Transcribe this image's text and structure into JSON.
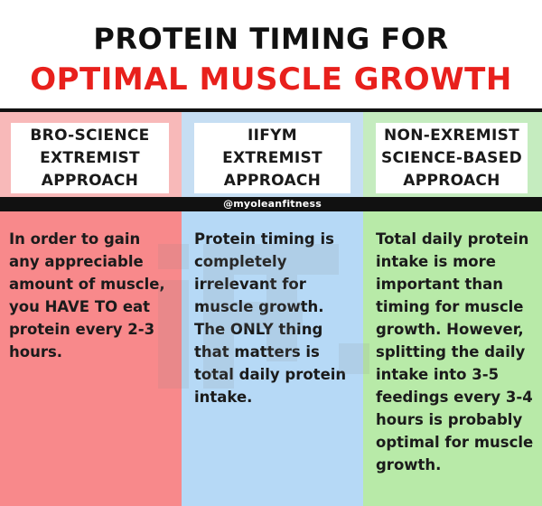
{
  "title": {
    "line1": "PROTEIN TIMING FOR",
    "line2": "OPTIMAL MUSCLE GROWTH"
  },
  "colors": {
    "title_red": "#e8201c",
    "red_head": "#f8b9b9",
    "red_body": "#f8898b",
    "blue_head": "#c6def3",
    "blue_body": "#b6d9f6",
    "green_head": "#c5ecbf",
    "green_body": "#b8eaa8",
    "band": "#111111"
  },
  "handle": "@myoleanfitness",
  "columns": [
    {
      "label": [
        "BRO-SCIENCE",
        "EXTREMIST",
        "APPROACH"
      ],
      "body": [
        "In order to gain",
        "any appreciable",
        "amount of muscle,",
        "you HAVE TO eat",
        "protein every 2-3",
        "hours."
      ]
    },
    {
      "label": [
        "IIFYM",
        "EXTREMIST",
        "APPROACH"
      ],
      "body": [
        "Protein timing is",
        "completely",
        "irrelevant for",
        "muscle growth.",
        "The ONLY thing",
        "that matters is",
        "total daily protein",
        "intake."
      ]
    },
    {
      "label": [
        "NON-EXREMIST",
        "SCIENCE-BASED",
        "APPROACH"
      ],
      "body": [
        "Total daily protein",
        "intake is more",
        "important than",
        "timing for muscle",
        "growth. However,",
        "splitting the daily",
        "intake into 3-5",
        "feedings every 3-4",
        "hours is probably",
        "optimal for muscle",
        "growth."
      ]
    }
  ]
}
